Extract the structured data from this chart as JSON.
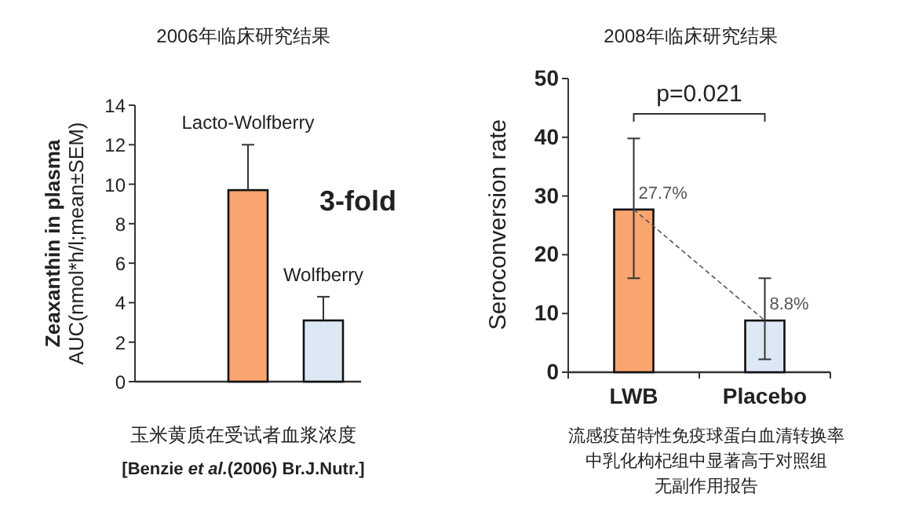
{
  "chart_data": [
    {
      "type": "bar",
      "title": "2006年临床研究结果",
      "categories": [
        null,
        "Lacto-Wolfberry",
        "Wolfberry"
      ],
      "values": [
        null,
        9.7,
        3.1
      ],
      "errors": [
        null,
        [
          9.7,
          12.0
        ],
        [
          3.1,
          4.3
        ]
      ],
      "colors": [
        null,
        "#f9a56f",
        "#dce9f5"
      ],
      "ylabel": "**Zeaxanthin in plasma**\nAUC(nmol*h/l;mean±SEM)",
      "ylim": [
        0,
        14
      ],
      "yticks": [
        0,
        2,
        4,
        6,
        8,
        10,
        12,
        14
      ],
      "annotations": [
        "3-fold",
        "玉米黄质在受试者血浆浓度",
        "[Benzie *et al.*(2006) Br.J.Nutr.]"
      ]
    },
    {
      "type": "bar",
      "title": "2008年临床研究结果",
      "categories": [
        "LWB",
        "Placebo"
      ],
      "series": [
        {
          "values": [
            27.7,
            8.8
          ],
          "colors": [
            "#f9a56f",
            "#dce9f5"
          ],
          "errors": [
            [
              16,
              39.8
            ],
            [
              2.2,
              16
            ]
          ],
          "value_labels": [
            "27.7%",
            "8.8%"
          ]
        },
        {
          "type": "line",
          "values": [
            27.7,
            8.8
          ],
          "color": "#555555",
          "line_style": "dashed"
        }
      ],
      "ylabel": "Seroconversion  rate",
      "ylim": [
        0,
        50
      ],
      "yticks": [
        0,
        10,
        20,
        30,
        40,
        50
      ],
      "annotations": [
        "p=0.021",
        "流感疫苗特性免疫球蛋白血清转换率",
        "中乳化枸杞组中显著高于对照组",
        "无副作用报告"
      ]
    }
  ]
}
